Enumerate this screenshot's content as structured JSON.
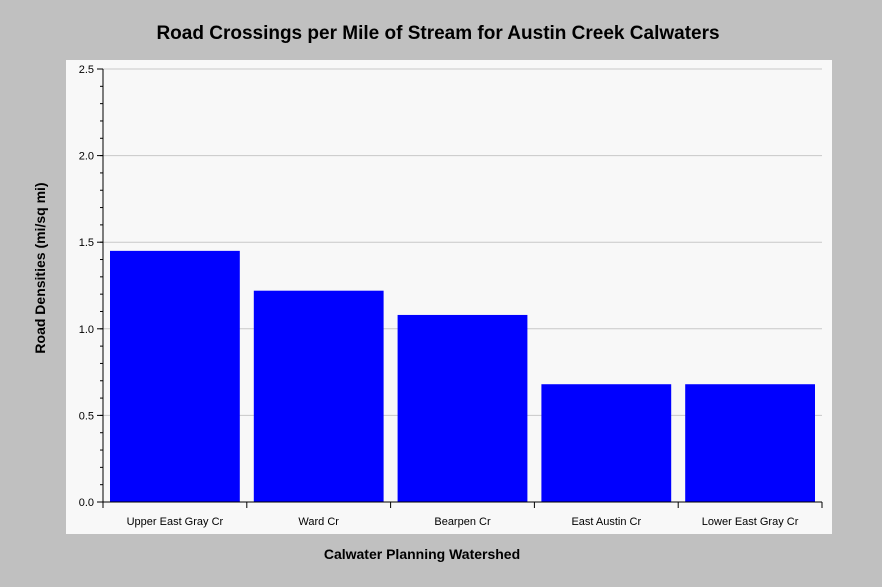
{
  "chart_data": {
    "type": "bar",
    "title": "Road Crossings per Mile of Stream for Austin Creek Calwaters",
    "xlabel": "Calwater Planning Watershed",
    "ylabel": "Road Densities (mi/sq mi)",
    "categories": [
      "Upper East Gray Cr",
      "Ward Cr",
      "Bearpen Cr",
      "East Austin Cr",
      "Lower East Gray Cr"
    ],
    "values": [
      1.45,
      1.22,
      1.08,
      0.68,
      0.68
    ],
    "ylim": [
      0,
      2.5
    ],
    "yticks": [
      "0.0",
      "0.5",
      "1.0",
      "1.5",
      "2.0",
      "2.5"
    ],
    "grid": true,
    "bar_color": "#0000ff",
    "plot_background": "#f8f8f8",
    "page_background": "#c0c0c0"
  }
}
